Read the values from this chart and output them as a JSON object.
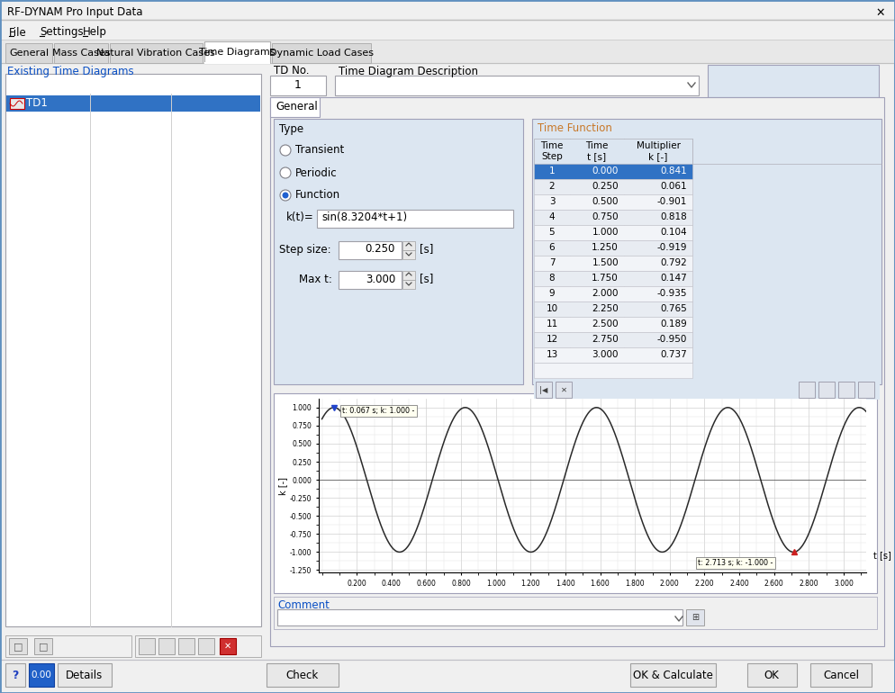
{
  "title": "RF-DYNAM Pro Input Data",
  "menu_items": [
    "File",
    "Settings",
    "Help"
  ],
  "tabs": [
    "General",
    "Mass Cases",
    "Natural Vibration Cases",
    "Time Diagrams",
    "Dynamic Load Cases"
  ],
  "active_tab_idx": 3,
  "td_item": "TD1",
  "td_no_value": "1",
  "type_options": [
    "Transient",
    "Periodic",
    "Function"
  ],
  "active_type_idx": 2,
  "formula": "sin(8.3204*t+1)",
  "step_size_value": "0.250",
  "max_t_value": "3.000",
  "table_data": [
    [
      1,
      0.0,
      0.841
    ],
    [
      2,
      0.25,
      0.061
    ],
    [
      3,
      0.5,
      -0.901
    ],
    [
      4,
      0.75,
      0.818
    ],
    [
      5,
      1.0,
      0.104
    ],
    [
      6,
      1.25,
      -0.919
    ],
    [
      7,
      1.5,
      0.792
    ],
    [
      8,
      1.75,
      0.147
    ],
    [
      9,
      2.0,
      -0.935
    ],
    [
      10,
      2.25,
      0.765
    ],
    [
      11,
      2.5,
      0.189
    ],
    [
      12,
      2.75,
      -0.95
    ],
    [
      13,
      3.0,
      0.737
    ]
  ],
  "chart_yticks": [
    -1.25,
    -1.0,
    -0.75,
    -0.5,
    -0.25,
    0.0,
    0.25,
    0.5,
    0.75,
    1.0
  ],
  "chart_xticks": [
    0.2,
    0.4,
    0.6,
    0.8,
    1.0,
    1.2,
    1.4,
    1.6,
    1.8,
    2.0,
    2.2,
    2.4,
    2.6,
    2.8,
    3.0
  ],
  "marker1_t": 0.067,
  "marker1_k": 1.0,
  "marker1_label": "t: 0.067 s; k: 1.000 -",
  "marker2_t": 2.713,
  "marker2_k": -1.0,
  "marker2_label": "t: 2.713 s; k: -1.000 -",
  "bg_color": "#f0f0f0",
  "panel_bg": "#dce6f1",
  "table_sel_bg": "#3072c4",
  "chart_line_color": "#2a2a2a",
  "blue_text": "#0a4fc4",
  "orange_text": "#c87828"
}
